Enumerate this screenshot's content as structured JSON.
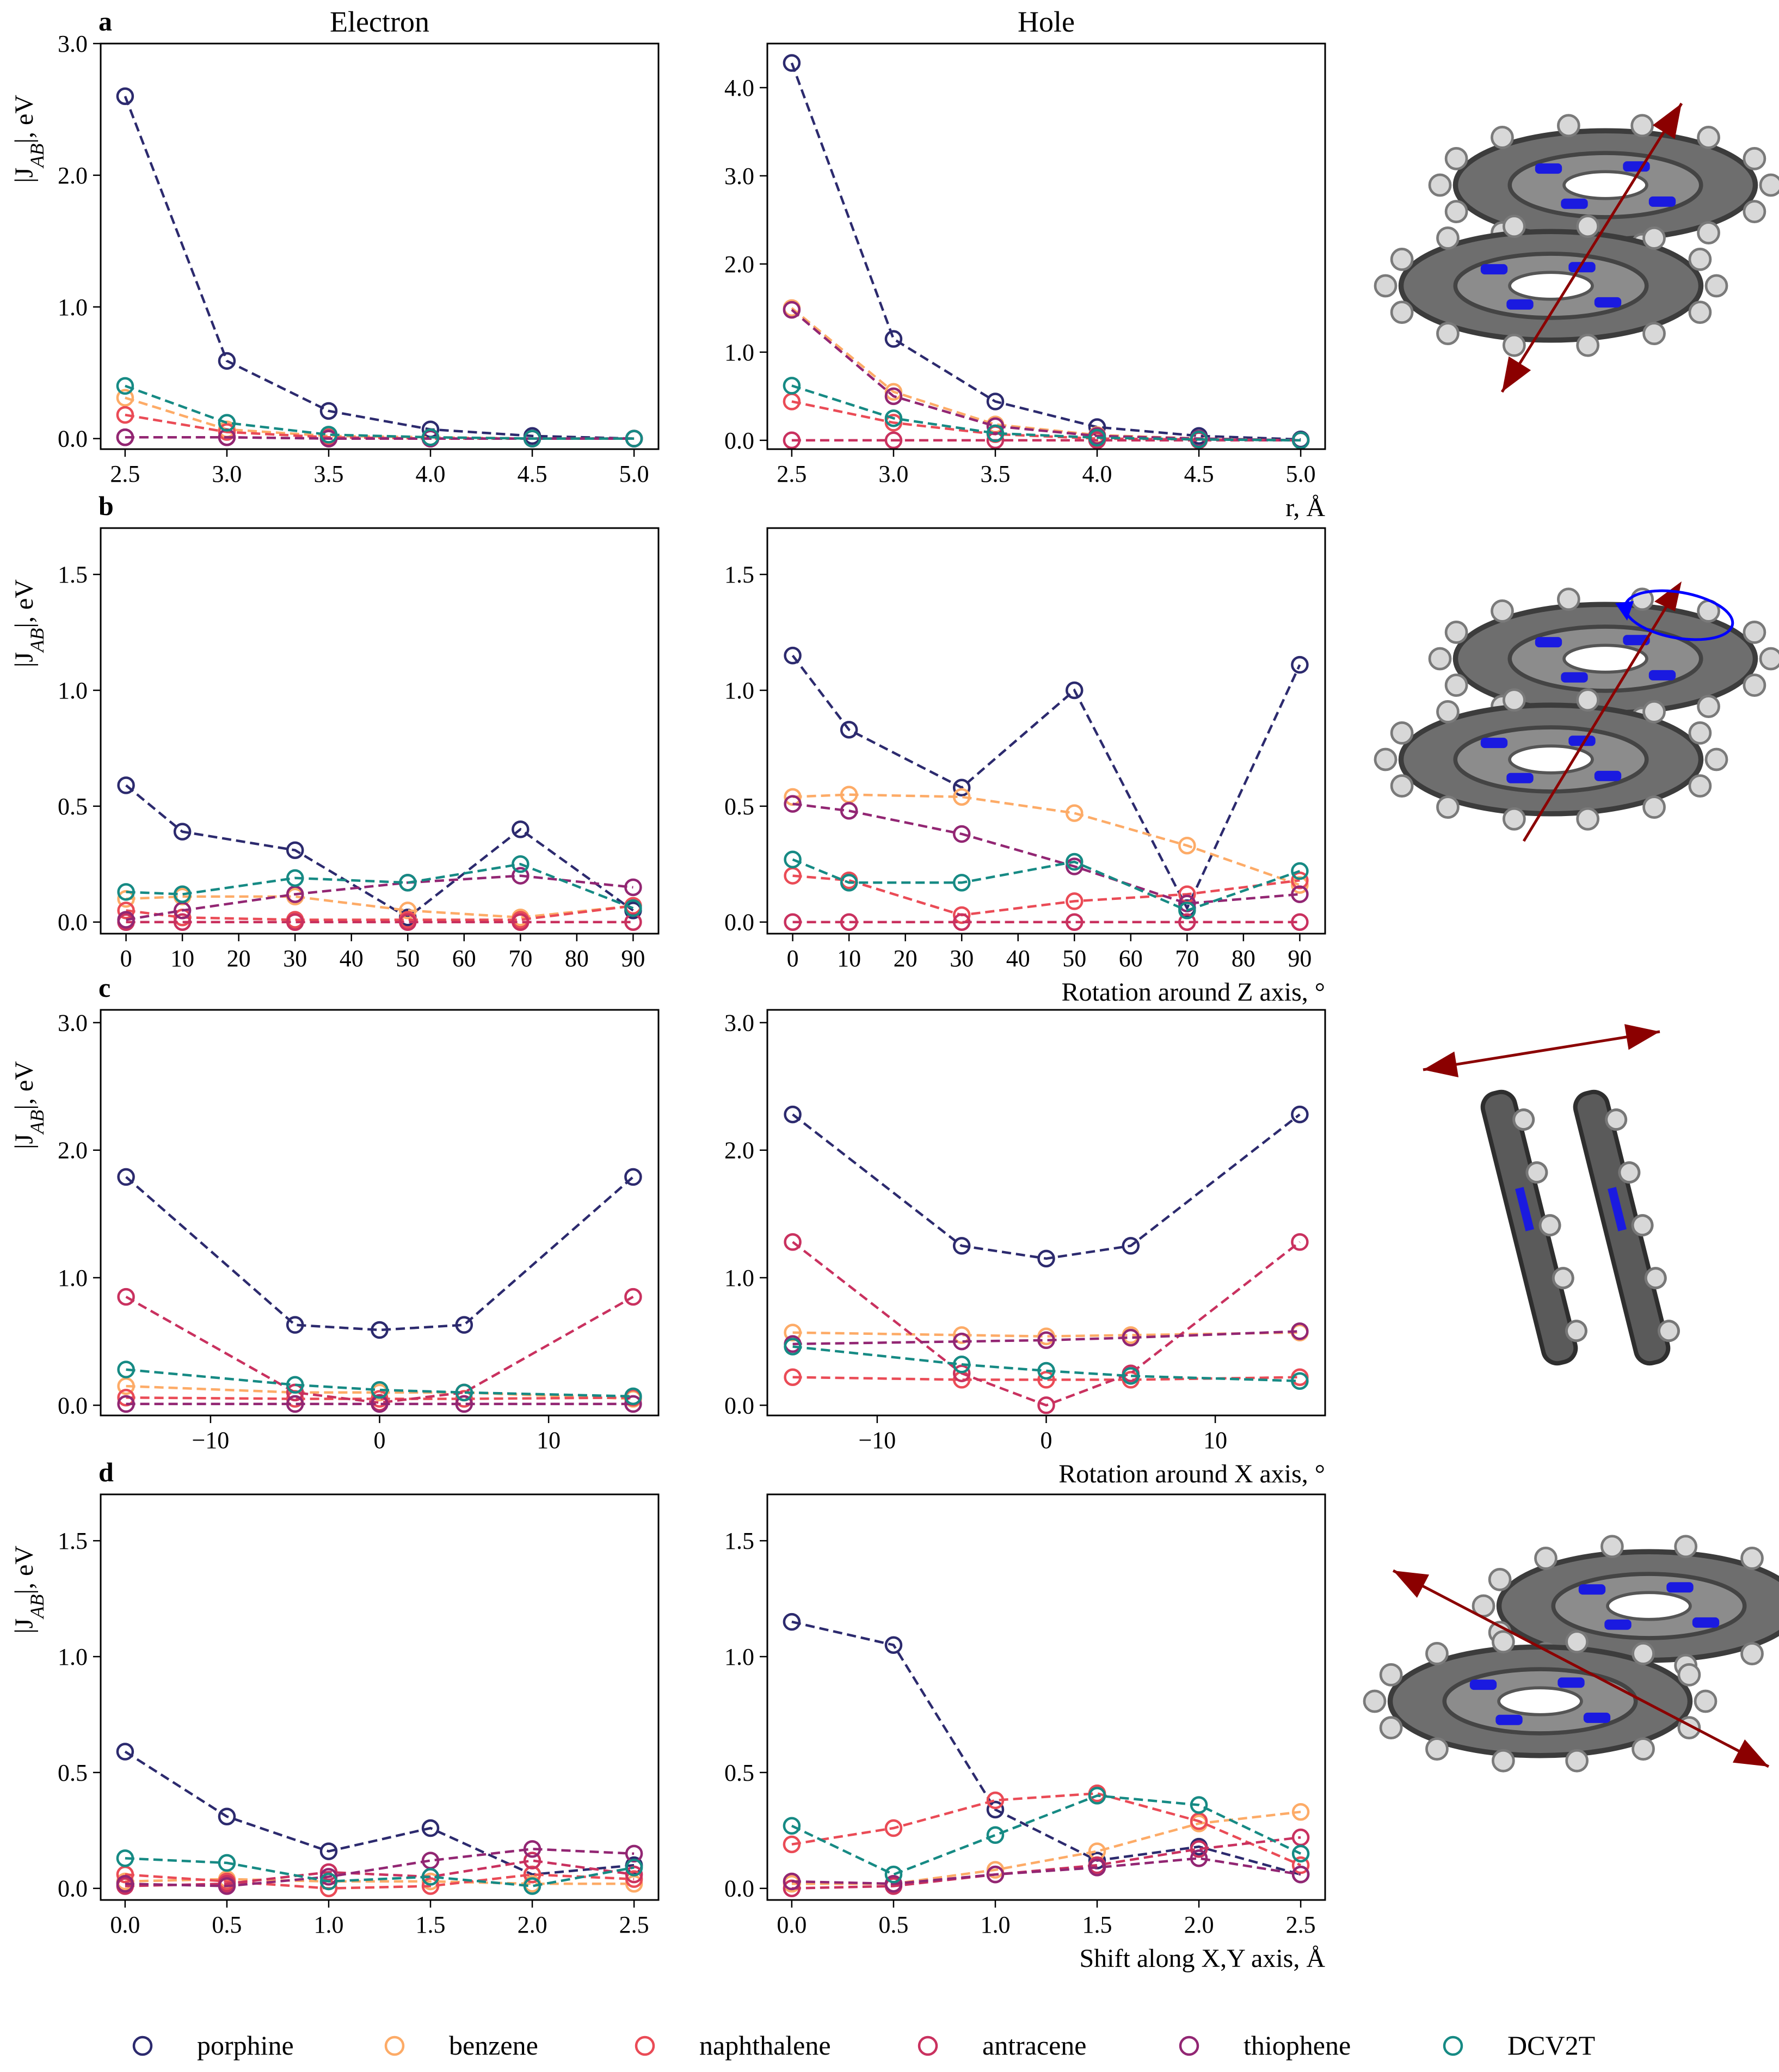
{
  "colors": {
    "porphine": "#2c2a6e",
    "benzene": "#fdab67",
    "naphthalene": "#ea4b56",
    "antracene": "#c9315f",
    "thiophene": "#922673",
    "DCV2T": "#168a84",
    "arrow": "#8b0000",
    "rotation_arrow": "#0000ff"
  },
  "legend": [
    "porphine",
    "benzene",
    "naphthalene",
    "antracene",
    "thiophene",
    "DCV2T"
  ],
  "column_titles": {
    "electron": "Electron",
    "hole": "Hole"
  },
  "row_labels": [
    "a",
    "b",
    "c",
    "d"
  ],
  "ylabel": "|J_AB|, eV",
  "molecule_images": [
    {
      "name": "porphine-stack-distance",
      "icon": "porphine-dimer-stacked-arrow-icon"
    },
    {
      "name": "porphine-stack-rotation-z",
      "icon": "porphine-dimer-rotation-z-icon"
    },
    {
      "name": "porphine-stack-rotation-x",
      "icon": "porphine-dimer-side-view-arrow-icon"
    },
    {
      "name": "porphine-stack-shift",
      "icon": "porphine-dimer-shift-arrow-icon"
    }
  ],
  "chart_data": [
    {
      "id": "a-electron",
      "type": "line",
      "row": 0,
      "col": 0,
      "title": "Electron",
      "panel_label": "a",
      "xlabel": "",
      "ylabel": "|J_AB|, eV",
      "xlim": [
        2.38,
        5.12
      ],
      "ylim": [
        -0.08,
        3.0
      ],
      "xticks": [
        2.5,
        3.0,
        3.5,
        4.0,
        4.5,
        5.0
      ],
      "xtick_labels": [
        "2.5",
        "3.0",
        "3.5",
        "4.0",
        "4.5",
        "5.0"
      ],
      "yticks": [
        0,
        1,
        2,
        3
      ],
      "ytick_labels": [
        "0.0",
        "1.0",
        "2.0",
        "3.0"
      ],
      "x": [
        2.5,
        3.0,
        3.5,
        4.0,
        4.5,
        5.0
      ],
      "series": [
        {
          "name": "porphine",
          "values": [
            2.6,
            0.59,
            0.21,
            0.07,
            0.02,
            0.0
          ]
        },
        {
          "name": "benzene",
          "values": [
            0.31,
            0.07,
            0.02,
            0.01,
            0.0,
            0.0
          ]
        },
        {
          "name": "naphthalene",
          "values": [
            0.18,
            0.05,
            0.01,
            0.0,
            0.0,
            0.0
          ]
        },
        {
          "name": "antracene",
          "values": [
            0.01,
            0.01,
            0.0,
            0.0,
            0.0,
            0.0
          ]
        },
        {
          "name": "thiophene",
          "values": [
            0.01,
            0.01,
            0.0,
            0.0,
            0.0,
            0.0
          ]
        },
        {
          "name": "DCV2T",
          "values": [
            0.4,
            0.12,
            0.03,
            0.01,
            0.0,
            0.0
          ]
        }
      ]
    },
    {
      "id": "a-hole",
      "type": "line",
      "row": 0,
      "col": 1,
      "title": "Hole",
      "panel_label": "",
      "xlabel": "r, Å",
      "ylabel": "",
      "xlim": [
        2.38,
        5.12
      ],
      "ylim": [
        -0.1,
        4.5
      ],
      "xticks": [
        2.5,
        3.0,
        3.5,
        4.0,
        4.5,
        5.0
      ],
      "xtick_labels": [
        "2.5",
        "3.0",
        "3.5",
        "4.0",
        "4.5",
        "5.0"
      ],
      "yticks": [
        0,
        1,
        2,
        3,
        4
      ],
      "ytick_labels": [
        "0.0",
        "1.0",
        "2.0",
        "3.0",
        "4.0"
      ],
      "x": [
        2.5,
        3.0,
        3.5,
        4.0,
        4.5,
        5.0
      ],
      "series": [
        {
          "name": "porphine",
          "values": [
            4.28,
            1.15,
            0.44,
            0.15,
            0.05,
            0.01
          ]
        },
        {
          "name": "benzene",
          "values": [
            1.5,
            0.55,
            0.18,
            0.06,
            0.02,
            0.0
          ]
        },
        {
          "name": "naphthalene",
          "values": [
            0.44,
            0.2,
            0.07,
            0.02,
            0.01,
            0.0
          ]
        },
        {
          "name": "antracene",
          "values": [
            0.0,
            0.0,
            0.0,
            0.0,
            0.0,
            0.0
          ]
        },
        {
          "name": "thiophene",
          "values": [
            1.48,
            0.5,
            0.16,
            0.05,
            0.02,
            0.0
          ]
        },
        {
          "name": "DCV2T",
          "values": [
            0.62,
            0.25,
            0.08,
            0.03,
            0.01,
            0.0
          ]
        }
      ]
    },
    {
      "id": "b-electron",
      "type": "line",
      "row": 1,
      "col": 0,
      "title": "",
      "panel_label": "b",
      "xlabel": "",
      "ylabel": "|J_AB|, eV",
      "xlim": [
        -4.5,
        94.5
      ],
      "ylim": [
        -0.05,
        1.7
      ],
      "xticks": [
        0,
        10,
        20,
        30,
        40,
        50,
        60,
        70,
        80,
        90
      ],
      "xtick_labels": [
        "0",
        "10",
        "20",
        "30",
        "40",
        "50",
        "60",
        "70",
        "80",
        "90"
      ],
      "yticks": [
        0,
        0.5,
        1.0,
        1.5
      ],
      "ytick_labels": [
        "0.0",
        "0.5",
        "1.0",
        "1.5"
      ],
      "x": [
        0,
        10,
        30,
        50,
        70,
        90
      ],
      "series": [
        {
          "name": "porphine",
          "values": [
            0.59,
            0.39,
            0.31,
            0.02,
            0.4,
            0.05
          ]
        },
        {
          "name": "benzene",
          "values": [
            0.1,
            0.11,
            0.11,
            0.05,
            0.02,
            0.07
          ]
        },
        {
          "name": "naphthalene",
          "values": [
            0.05,
            0.02,
            0.01,
            0.01,
            0.01,
            0.07
          ]
        },
        {
          "name": "antracene",
          "values": [
            0.0,
            0.0,
            0.0,
            0.0,
            0.0,
            0.0
          ]
        },
        {
          "name": "thiophene",
          "values": [
            0.01,
            0.05,
            0.12,
            0.17,
            0.2,
            0.15
          ]
        },
        {
          "name": "DCV2T",
          "values": [
            0.13,
            0.12,
            0.19,
            0.17,
            0.25,
            0.06
          ]
        }
      ]
    },
    {
      "id": "b-hole",
      "type": "line",
      "row": 1,
      "col": 1,
      "title": "",
      "panel_label": "",
      "xlabel": "Rotation around Z axis, °",
      "ylabel": "",
      "xlim": [
        -4.5,
        94.5
      ],
      "ylim": [
        -0.05,
        1.7
      ],
      "xticks": [
        0,
        10,
        20,
        30,
        40,
        50,
        60,
        70,
        80,
        90
      ],
      "xtick_labels": [
        "0",
        "10",
        "20",
        "30",
        "40",
        "50",
        "60",
        "70",
        "80",
        "90"
      ],
      "yticks": [
        0,
        0.5,
        1.0,
        1.5
      ],
      "ytick_labels": [
        "0.0",
        "0.5",
        "1.0",
        "1.5"
      ],
      "x": [
        0,
        10,
        30,
        50,
        70,
        90
      ],
      "series": [
        {
          "name": "porphine",
          "values": [
            1.15,
            0.83,
            0.58,
            1.0,
            0.06,
            1.11
          ]
        },
        {
          "name": "benzene",
          "values": [
            0.54,
            0.55,
            0.54,
            0.47,
            0.33,
            0.16
          ]
        },
        {
          "name": "naphthalene",
          "values": [
            0.2,
            0.18,
            0.03,
            0.09,
            0.12,
            0.18
          ]
        },
        {
          "name": "antracene",
          "values": [
            0.0,
            0.0,
            0.0,
            0.0,
            0.0,
            0.0
          ]
        },
        {
          "name": "thiophene",
          "values": [
            0.51,
            0.48,
            0.38,
            0.24,
            0.08,
            0.12
          ]
        },
        {
          "name": "DCV2T",
          "values": [
            0.27,
            0.17,
            0.17,
            0.26,
            0.05,
            0.22
          ]
        }
      ]
    },
    {
      "id": "c-electron",
      "type": "line",
      "row": 2,
      "col": 0,
      "title": "",
      "panel_label": "c",
      "xlabel": "",
      "ylabel": "|J_AB|, eV",
      "xlim": [
        -16.5,
        16.5
      ],
      "ylim": [
        -0.08,
        3.1
      ],
      "xticks": [
        -10,
        0,
        10
      ],
      "xtick_labels": [
        "−10",
        "0",
        "10"
      ],
      "yticks": [
        0,
        1,
        2,
        3
      ],
      "ytick_labels": [
        "0.0",
        "1.0",
        "2.0",
        "3.0"
      ],
      "x": [
        -15,
        -5,
        0,
        5,
        15
      ],
      "series": [
        {
          "name": "porphine",
          "values": [
            1.79,
            0.63,
            0.59,
            0.63,
            1.79
          ]
        },
        {
          "name": "benzene",
          "values": [
            0.15,
            0.1,
            0.1,
            0.1,
            0.05
          ]
        },
        {
          "name": "naphthalene",
          "values": [
            0.06,
            0.05,
            0.05,
            0.05,
            0.06
          ]
        },
        {
          "name": "antracene",
          "values": [
            0.85,
            0.1,
            0.02,
            0.1,
            0.85
          ]
        },
        {
          "name": "thiophene",
          "values": [
            0.01,
            0.01,
            0.01,
            0.01,
            0.01
          ]
        },
        {
          "name": "DCV2T",
          "values": [
            0.28,
            0.16,
            0.12,
            0.1,
            0.07
          ]
        }
      ]
    },
    {
      "id": "c-hole",
      "type": "line",
      "row": 2,
      "col": 1,
      "title": "",
      "panel_label": "",
      "xlabel": "Rotation around X axis, °",
      "ylabel": "",
      "xlim": [
        -16.5,
        16.5
      ],
      "ylim": [
        -0.08,
        3.1
      ],
      "xticks": [
        -10,
        0,
        10
      ],
      "xtick_labels": [
        "−10",
        "0",
        "10"
      ],
      "yticks": [
        0,
        1,
        2,
        3
      ],
      "ytick_labels": [
        "0.0",
        "1.0",
        "2.0",
        "3.0"
      ],
      "x": [
        -15,
        -5,
        0,
        5,
        15
      ],
      "series": [
        {
          "name": "porphine",
          "values": [
            2.28,
            1.25,
            1.15,
            1.25,
            2.28
          ]
        },
        {
          "name": "benzene",
          "values": [
            0.57,
            0.55,
            0.54,
            0.55,
            0.57
          ]
        },
        {
          "name": "naphthalene",
          "values": [
            0.22,
            0.2,
            0.2,
            0.2,
            0.22
          ]
        },
        {
          "name": "antracene",
          "values": [
            1.28,
            0.25,
            0.0,
            0.25,
            1.28
          ]
        },
        {
          "name": "thiophene",
          "values": [
            0.48,
            0.5,
            0.51,
            0.53,
            0.58
          ]
        },
        {
          "name": "DCV2T",
          "values": [
            0.46,
            0.32,
            0.27,
            0.23,
            0.19
          ]
        }
      ]
    },
    {
      "id": "d-electron",
      "type": "line",
      "row": 3,
      "col": 0,
      "title": "",
      "panel_label": "d",
      "xlabel": "",
      "ylabel": "|J_AB|, eV",
      "xlim": [
        -0.12,
        2.62
      ],
      "ylim": [
        -0.05,
        1.7
      ],
      "xticks": [
        0,
        0.5,
        1.0,
        1.5,
        2.0,
        2.5
      ],
      "xtick_labels": [
        "0.0",
        "0.5",
        "1.0",
        "1.5",
        "2.0",
        "2.5"
      ],
      "yticks": [
        0,
        0.5,
        1.0,
        1.5
      ],
      "ytick_labels": [
        "0.0",
        "0.5",
        "1.0",
        "1.5"
      ],
      "x": [
        0,
        0.5,
        1.0,
        1.5,
        2.0,
        2.5
      ],
      "series": [
        {
          "name": "porphine",
          "values": [
            0.59,
            0.31,
            0.16,
            0.26,
            0.06,
            0.1
          ]
        },
        {
          "name": "benzene",
          "values": [
            0.03,
            0.04,
            0.03,
            0.03,
            0.02,
            0.02
          ]
        },
        {
          "name": "naphthalene",
          "values": [
            0.06,
            0.03,
            0.0,
            0.01,
            0.06,
            0.04
          ]
        },
        {
          "name": "antracene",
          "values": [
            0.01,
            0.02,
            0.07,
            0.05,
            0.12,
            0.06
          ]
        },
        {
          "name": "thiophene",
          "values": [
            0.02,
            0.01,
            0.05,
            0.12,
            0.17,
            0.15
          ]
        },
        {
          "name": "DCV2T",
          "values": [
            0.13,
            0.11,
            0.03,
            0.05,
            0.01,
            0.09
          ]
        }
      ]
    },
    {
      "id": "d-hole",
      "type": "line",
      "row": 3,
      "col": 1,
      "title": "",
      "panel_label": "",
      "xlabel": "Shift along X,Y axis, Å",
      "ylabel": "",
      "xlim": [
        -0.12,
        2.62
      ],
      "ylim": [
        -0.05,
        1.7
      ],
      "xticks": [
        0,
        0.5,
        1.0,
        1.5,
        2.0,
        2.5
      ],
      "xtick_labels": [
        "0.0",
        "0.5",
        "1.0",
        "1.5",
        "2.0",
        "2.5"
      ],
      "yticks": [
        0,
        0.5,
        1.0,
        1.5
      ],
      "ytick_labels": [
        "0.0",
        "0.5",
        "1.0",
        "1.5"
      ],
      "x": [
        0,
        0.5,
        1.0,
        1.5,
        2.0,
        2.5
      ],
      "series": [
        {
          "name": "porphine",
          "values": [
            1.15,
            1.05,
            0.34,
            0.12,
            0.18,
            0.06
          ]
        },
        {
          "name": "benzene",
          "values": [
            0.02,
            0.02,
            0.08,
            0.16,
            0.28,
            0.33
          ]
        },
        {
          "name": "naphthalene",
          "values": [
            0.19,
            0.26,
            0.38,
            0.41,
            0.29,
            0.1
          ]
        },
        {
          "name": "antracene",
          "values": [
            0.0,
            0.01,
            0.06,
            0.1,
            0.17,
            0.22
          ]
        },
        {
          "name": "thiophene",
          "values": [
            0.03,
            0.02,
            0.06,
            0.09,
            0.13,
            0.06
          ]
        },
        {
          "name": "DCV2T",
          "values": [
            0.27,
            0.06,
            0.23,
            0.4,
            0.36,
            0.15
          ]
        }
      ]
    }
  ]
}
